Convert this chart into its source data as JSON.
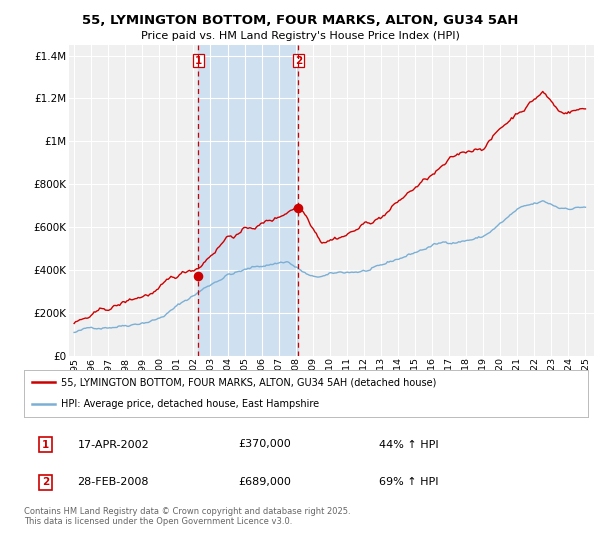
{
  "title": "55, LYMINGTON BOTTOM, FOUR MARKS, ALTON, GU34 5AH",
  "subtitle": "Price paid vs. HM Land Registry's House Price Index (HPI)",
  "ylim": [
    0,
    1450000
  ],
  "yticks": [
    0,
    200000,
    400000,
    600000,
    800000,
    1000000,
    1200000,
    1400000
  ],
  "ytick_labels": [
    "£0",
    "£200K",
    "£400K",
    "£600K",
    "£800K",
    "£1M",
    "£1.2M",
    "£1.4M"
  ],
  "year_start": 1995,
  "year_end": 2025,
  "vline1_year": 2002.29,
  "vline2_year": 2008.16,
  "shade_color": "#cfe0f0",
  "vline_color": "#cc0000",
  "red_line_color": "#cc0000",
  "blue_line_color": "#7bafd4",
  "transaction1": {
    "year": 2002.29,
    "price": 370000,
    "label": "1",
    "date": "17-APR-2002",
    "price_str": "£370,000",
    "pct": "44% ↑ HPI"
  },
  "transaction2": {
    "year": 2008.16,
    "price": 689000,
    "label": "2",
    "date": "28-FEB-2008",
    "price_str": "£689,000",
    "pct": "69% ↑ HPI"
  },
  "legend_line1": "55, LYMINGTON BOTTOM, FOUR MARKS, ALTON, GU34 5AH (detached house)",
  "legend_line2": "HPI: Average price, detached house, East Hampshire",
  "footer": "Contains HM Land Registry data © Crown copyright and database right 2025.\nThis data is licensed under the Open Government Licence v3.0.",
  "bg_color": "#ffffff",
  "plot_bg_color": "#f0f0f0"
}
